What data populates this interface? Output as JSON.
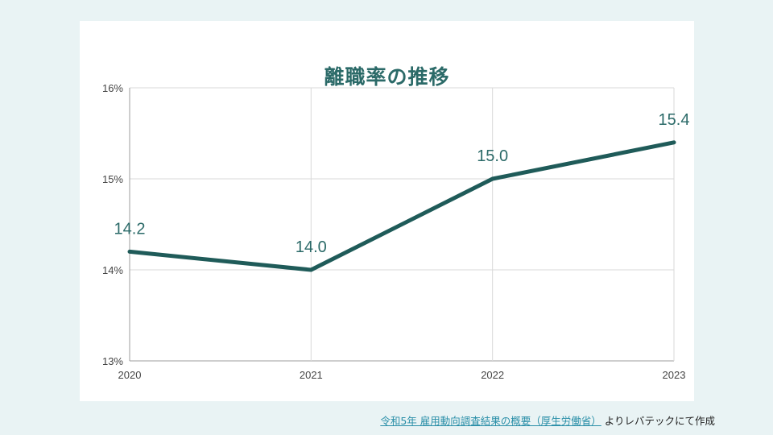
{
  "chart_data": {
    "type": "line",
    "title": "離職率の推移",
    "x": [
      "2020",
      "2021",
      "2022",
      "2023"
    ],
    "series": [
      {
        "values": [
          14.2,
          14.0,
          15.0,
          15.4
        ]
      }
    ],
    "data_labels": [
      "14.2",
      "14.0",
      "15.0",
      "15.4"
    ],
    "ylim": [
      13,
      16
    ],
    "yticks": [
      "13%",
      "14%",
      "15%",
      "16%"
    ],
    "xlabel": "",
    "ylabel": "",
    "grid": true,
    "colors": {
      "line": "#1f5b59",
      "label": "#2b6a68",
      "grid": "#d9d9d9"
    }
  },
  "source": {
    "link_text": "令和5年 雇用動向調査結果の概要（厚生労働省）",
    "suffix": " よりレバテックにて作成"
  }
}
